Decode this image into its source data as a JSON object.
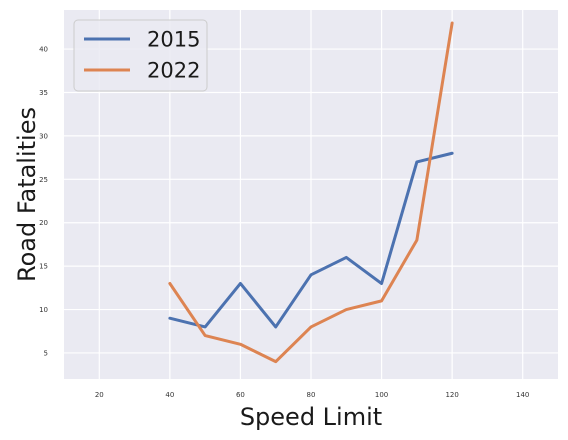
{
  "chart_data": {
    "type": "line",
    "title": "",
    "xlabel": "Speed Limit",
    "ylabel": "Road Fatalities",
    "x_ticks": [
      20,
      40,
      60,
      80,
      100,
      120,
      140
    ],
    "y_ticks": [
      5,
      10,
      15,
      20,
      25,
      30,
      35,
      40
    ],
    "xlim": [
      10,
      150
    ],
    "ylim": [
      2,
      44.5
    ],
    "grid": true,
    "legend": "top-left",
    "series": [
      {
        "name": "2015",
        "color": "#4c72b0",
        "x": [
          40,
          50,
          60,
          70,
          80,
          90,
          100,
          110,
          120
        ],
        "y": [
          9,
          8,
          13,
          8,
          14,
          16,
          13,
          27,
          28
        ]
      },
      {
        "name": "2022",
        "color": "#dd8452",
        "x": [
          40,
          50,
          60,
          70,
          80,
          90,
          100,
          110,
          120
        ],
        "y": [
          13,
          7,
          6,
          4,
          8,
          10,
          11,
          18,
          43
        ]
      }
    ]
  }
}
